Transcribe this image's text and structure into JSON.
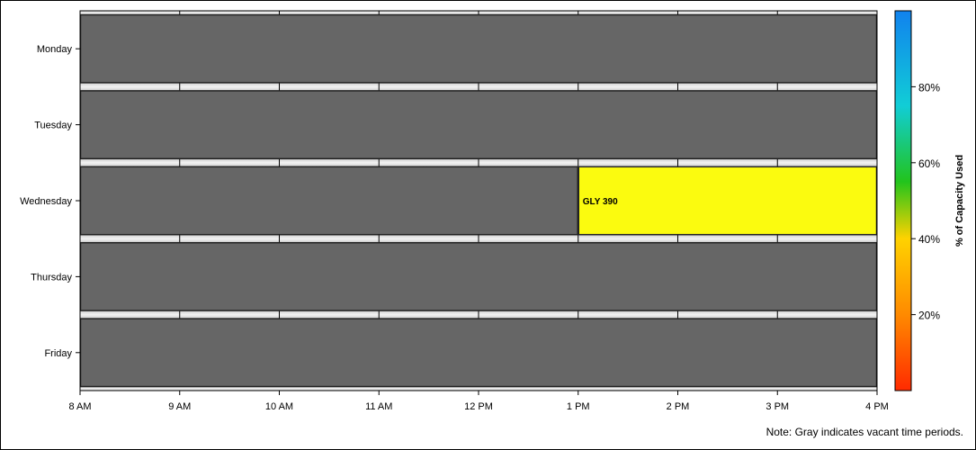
{
  "chart_data": {
    "type": "timeline",
    "days": [
      "Monday",
      "Tuesday",
      "Wednesday",
      "Thursday",
      "Friday"
    ],
    "x_ticks": [
      "8 AM",
      "9 AM",
      "10 AM",
      "11 AM",
      "12 PM",
      "1 PM",
      "2 PM",
      "3 PM",
      "4 PM"
    ],
    "x_range_hours": [
      8,
      16
    ],
    "bars": [
      {
        "day": "Monday",
        "start": 8,
        "end": 16,
        "status": "vacant",
        "label": ""
      },
      {
        "day": "Tuesday",
        "start": 8,
        "end": 16,
        "status": "vacant",
        "label": ""
      },
      {
        "day": "Wednesday",
        "start": 8,
        "end": 13,
        "status": "vacant",
        "label": ""
      },
      {
        "day": "Wednesday",
        "start": 13,
        "end": 16,
        "status": "used",
        "label": "GLY 390",
        "capacity_pct": 48
      },
      {
        "day": "Thursday",
        "start": 8,
        "end": 16,
        "status": "vacant",
        "label": ""
      },
      {
        "day": "Friday",
        "start": 8,
        "end": 16,
        "status": "vacant",
        "label": ""
      }
    ],
    "colorbar": {
      "label": "% of Capacity Used",
      "ticks": [
        "20%",
        "40%",
        "60%",
        "80%"
      ],
      "tick_values": [
        20,
        40,
        60,
        80
      ],
      "range": [
        0,
        100
      ]
    },
    "colors": {
      "vacant": "#666666",
      "used": "#fbfb0f",
      "separator": "#e6e6e6"
    }
  },
  "footnote": "Note: Gray indicates vacant time periods."
}
